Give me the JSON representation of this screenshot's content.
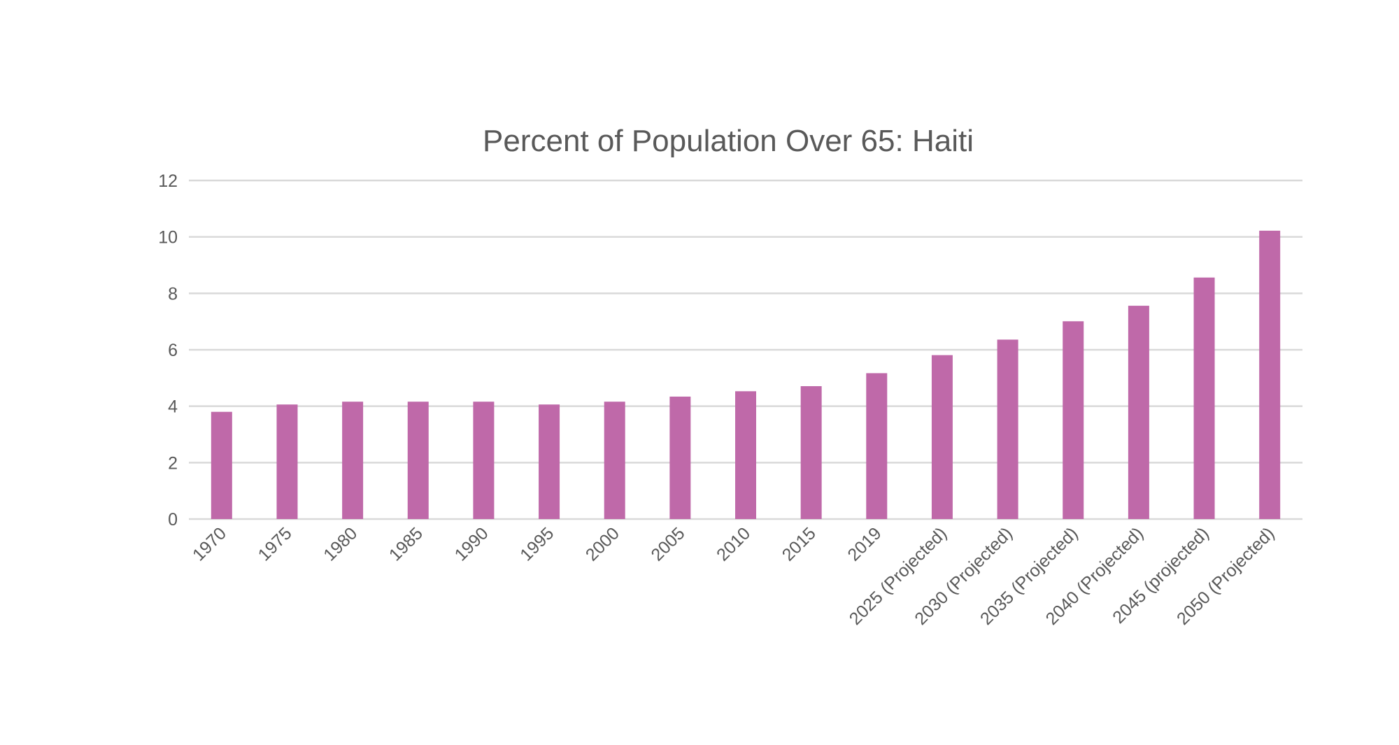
{
  "chart_data": {
    "type": "bar",
    "title": "Percent of Population Over 65: Haiti",
    "xlabel": "",
    "ylabel": "",
    "ylim": [
      0,
      12
    ],
    "yticks": [
      0,
      2,
      4,
      6,
      8,
      10,
      12
    ],
    "grid": true,
    "legend": "none",
    "bar_color": "#bf69a9",
    "grid_color": "#d9d9d9",
    "text_color": "#595959",
    "categories": [
      "1970",
      "1975",
      "1980",
      "1985",
      "1990",
      "1995",
      "2000",
      "2005",
      "2010",
      "2015",
      "2019",
      "2025 (Projected)",
      "2030 (Projected)",
      "2035 (Projected)",
      "2040 (Projected)",
      "2045 (projected)",
      "2050 (Projected)"
    ],
    "values": [
      3.8,
      4.06,
      4.16,
      4.16,
      4.16,
      4.06,
      4.16,
      4.34,
      4.53,
      4.71,
      5.17,
      5.81,
      6.36,
      7.01,
      7.56,
      8.56,
      10.22
    ]
  }
}
